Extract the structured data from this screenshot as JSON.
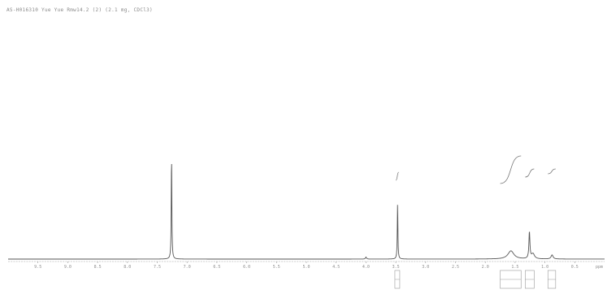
{
  "chart_data": {
    "type": "line",
    "title": "AS-H016310 Yue Yue Rmw14.2 (2) (2.1 mg, CDCl3)",
    "x_unit_label": "ppm",
    "xlim": [
      10.0,
      0.0
    ],
    "x_reversed": true,
    "x_ticks": [
      9.5,
      9.0,
      8.5,
      8.0,
      7.5,
      7.0,
      6.5,
      6.0,
      5.5,
      5.0,
      4.5,
      4.0,
      3.5,
      3.0,
      2.5,
      2.0,
      1.5,
      1.0,
      0.5
    ],
    "x_tick_labels": [
      "9.5",
      "9.0",
      "8.5",
      "8.0",
      "7.5",
      "7.0",
      "6.5",
      "6.0",
      "5.5",
      "5.0",
      "4.5",
      "4.0",
      "3.5",
      "3.0",
      "2.5",
      "2.0",
      "1.5",
      "1.0",
      "0.5",
      "ppm"
    ],
    "peaks": [
      {
        "shift": 7.26,
        "height": 1.0,
        "width": 0.006
      },
      {
        "shift": 3.47,
        "height": 0.54,
        "width": 0.006
      },
      {
        "shift": 4.0,
        "height": 0.02,
        "width": 0.01
      },
      {
        "shift": 1.57,
        "height": 0.08,
        "width": 0.06
      },
      {
        "shift": 1.26,
        "height": 0.26,
        "width": 0.01
      },
      {
        "shift": 1.2,
        "height": 0.05,
        "width": 0.03
      },
      {
        "shift": 0.88,
        "height": 0.04,
        "width": 0.02
      }
    ],
    "integrals": [
      {
        "from": 3.5,
        "to": 3.45
      },
      {
        "from": 1.75,
        "to": 1.4
      },
      {
        "from": 1.33,
        "to": 1.18
      },
      {
        "from": 0.95,
        "to": 0.82
      }
    ],
    "grid": false
  }
}
